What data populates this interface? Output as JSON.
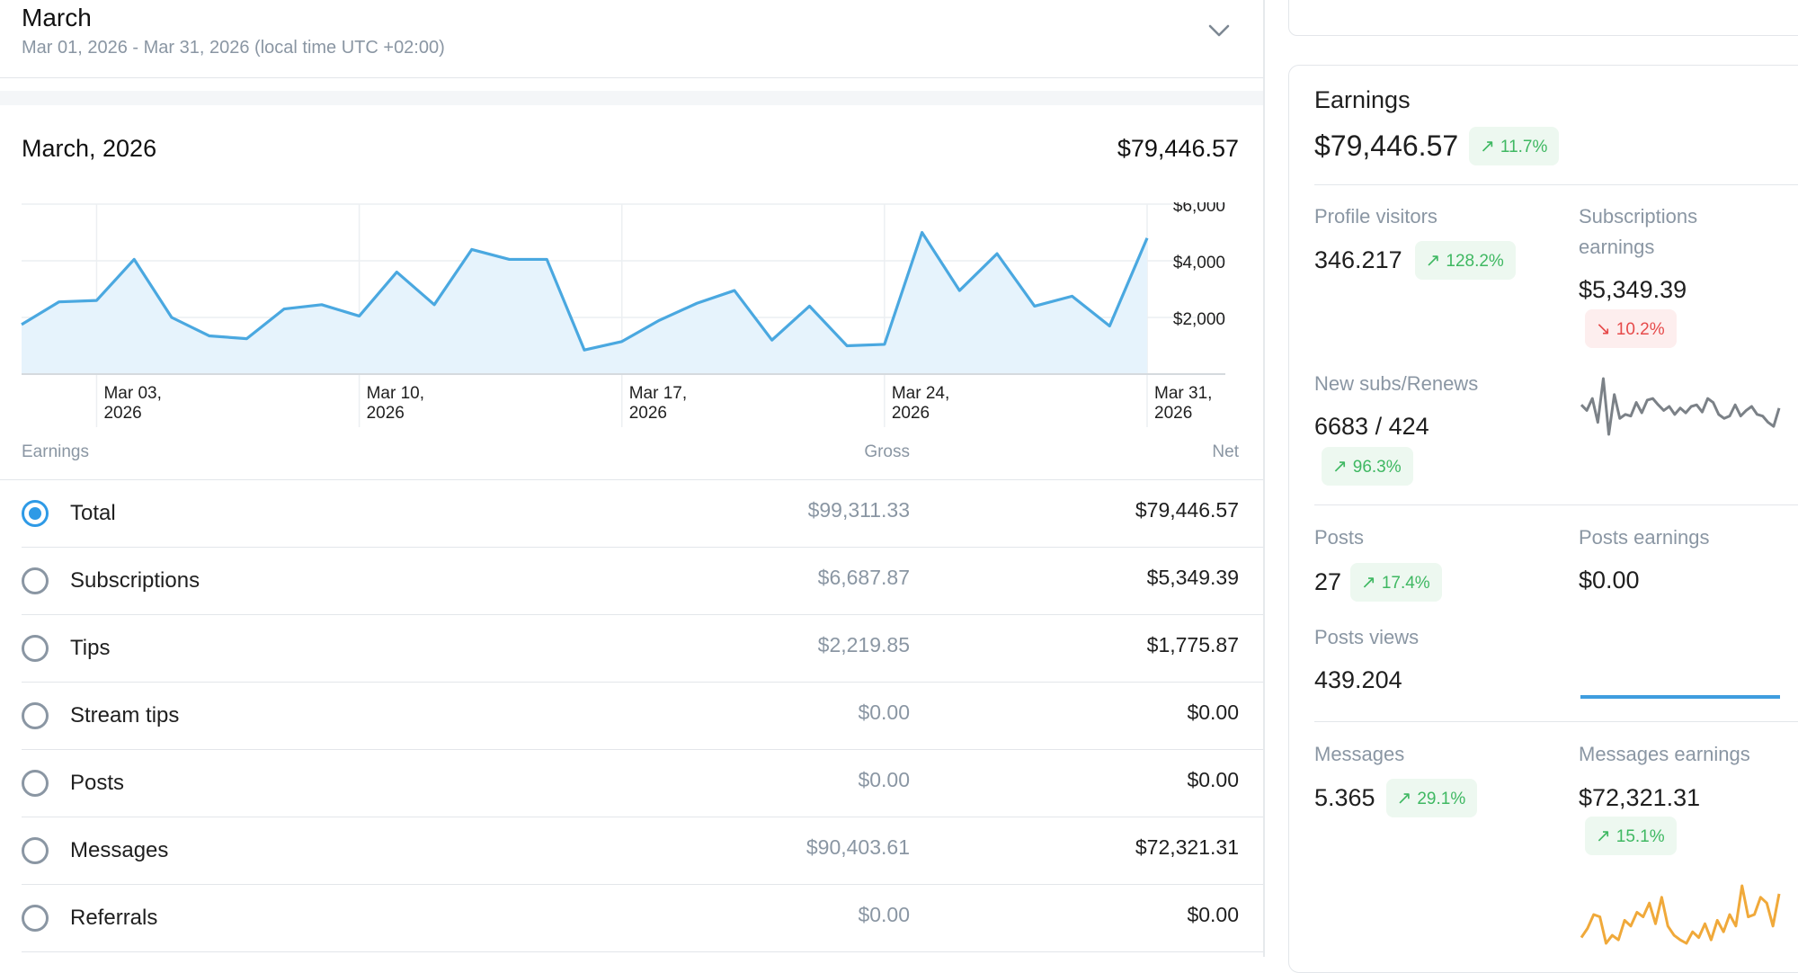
{
  "header": {
    "title": "March",
    "range": "Mar 01, 2026 - Mar 31, 2026 (local time UTC +02:00)"
  },
  "period": {
    "title": "March, 2026",
    "total": "$79,446.57"
  },
  "chart_data": {
    "type": "area",
    "x": [
      "Mar 01",
      "Mar 02",
      "Mar 03",
      "Mar 04",
      "Mar 05",
      "Mar 06",
      "Mar 07",
      "Mar 08",
      "Mar 09",
      "Mar 10",
      "Mar 11",
      "Mar 12",
      "Mar 13",
      "Mar 14",
      "Mar 15",
      "Mar 16",
      "Mar 17",
      "Mar 18",
      "Mar 19",
      "Mar 20",
      "Mar 21",
      "Mar 22",
      "Mar 23",
      "Mar 24",
      "Mar 25",
      "Mar 26",
      "Mar 27",
      "Mar 28",
      "Mar 29",
      "Mar 30",
      "Mar 31"
    ],
    "values": [
      1750,
      2550,
      2600,
      4050,
      2000,
      1350,
      1250,
      2300,
      2450,
      2050,
      3600,
      2450,
      4400,
      4050,
      4050,
      850,
      1150,
      1900,
      2500,
      2950,
      1200,
      2400,
      1000,
      1050,
      5000,
      2950,
      4250,
      2400,
      2750,
      1700,
      4800
    ],
    "ylim": [
      0,
      6000
    ],
    "y_ticks": [
      "$6,000",
      "$4,000",
      "$2,000"
    ],
    "x_ticks": [
      {
        "line1": "Mar 03,",
        "line2": "2026"
      },
      {
        "line1": "Mar 10,",
        "line2": "2026"
      },
      {
        "line1": "Mar 17,",
        "line2": "2026"
      },
      {
        "line1": "Mar 24,",
        "line2": "2026"
      },
      {
        "line1": "Mar 31,",
        "line2": "2026"
      }
    ],
    "line_color": "#4aa8e0",
    "fill_color": "#e6f3fc",
    "grid": true
  },
  "table": {
    "headers": {
      "earnings": "Earnings",
      "gross": "Gross",
      "net": "Net"
    },
    "rows": [
      {
        "label": "Total",
        "gross": "$99,311.33",
        "net": "$79,446.57",
        "selected": true
      },
      {
        "label": "Subscriptions",
        "gross": "$6,687.87",
        "net": "$5,349.39",
        "selected": false
      },
      {
        "label": "Tips",
        "gross": "$2,219.85",
        "net": "$1,775.87",
        "selected": false
      },
      {
        "label": "Stream tips",
        "gross": "$0.00",
        "net": "$0.00",
        "selected": false
      },
      {
        "label": "Posts",
        "gross": "$0.00",
        "net": "$0.00",
        "selected": false
      },
      {
        "label": "Messages",
        "gross": "$90,403.61",
        "net": "$72,321.31",
        "selected": false
      },
      {
        "label": "Referrals",
        "gross": "$0.00",
        "net": "$0.00",
        "selected": false
      }
    ]
  },
  "stats": {
    "earnings": {
      "label": "Earnings",
      "value": "$79,446.57",
      "change": "11.7%"
    },
    "profile_visitors": {
      "label": "Profile visitors",
      "value": "346.217",
      "change": "128.2%"
    },
    "subscriptions_earnings": {
      "label_line1": "Subscriptions",
      "label_line2": "earnings",
      "value": "$5,349.39",
      "change": "10.2%"
    },
    "new_subs": {
      "label": "New subs/Renews",
      "value": "6683 / 424",
      "change": "96.3%"
    },
    "posts": {
      "label": "Posts",
      "value": "27",
      "change": "17.4%"
    },
    "posts_earnings": {
      "label": "Posts earnings",
      "value": "$0.00"
    },
    "posts_views": {
      "label": "Posts views",
      "value": "439.204"
    },
    "messages": {
      "label": "Messages",
      "value": "5.365",
      "change": "29.1%"
    },
    "messages_earnings": {
      "label": "Messages earnings",
      "value": "$72,321.31",
      "change": "15.1%"
    }
  },
  "sparklines": {
    "subs": {
      "color": "#7b8187",
      "values": [
        42,
        35,
        50,
        20,
        75,
        5,
        55,
        25,
        30,
        28,
        45,
        32,
        48,
        50,
        42,
        35,
        40,
        30,
        38,
        32,
        40,
        42,
        33,
        50,
        45,
        30,
        25,
        28,
        42,
        28,
        35,
        40,
        30,
        28,
        20,
        15,
        38
      ]
    },
    "posts_views": {
      "color": "#3e9ddf",
      "values": [
        0,
        0
      ]
    },
    "messages": {
      "color": "#f0a93a",
      "values": [
        10,
        18,
        30,
        28,
        5,
        12,
        8,
        25,
        20,
        32,
        28,
        40,
        22,
        45,
        20,
        12,
        8,
        5,
        15,
        10,
        22,
        8,
        25,
        15,
        30,
        20,
        55,
        28,
        30,
        45,
        40,
        20,
        48
      ]
    }
  },
  "icons": {
    "chevron": "chevron-down-icon",
    "up": "arrow-up-right-icon",
    "down": "arrow-down-right-icon"
  }
}
